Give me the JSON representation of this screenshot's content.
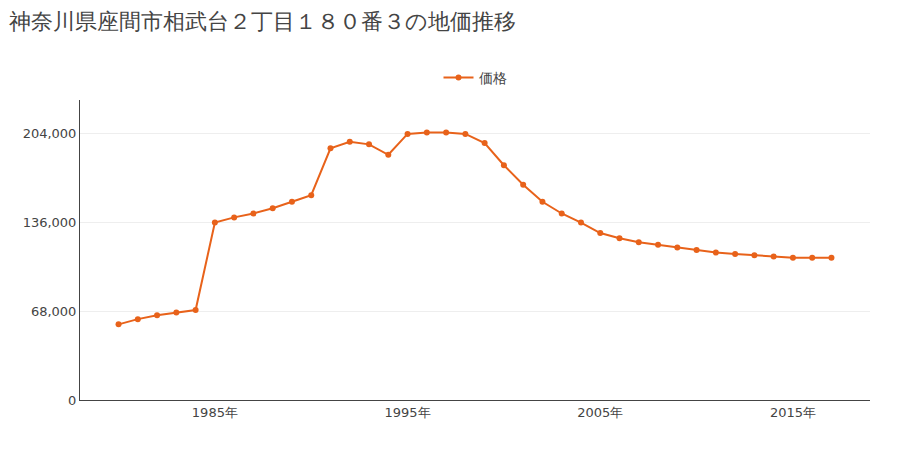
{
  "chart_data": {
    "type": "line",
    "title": "神奈川県座間市相武台２丁目１８０番３の地価推移",
    "x": [
      1980,
      1981,
      1982,
      1983,
      1984,
      1985,
      1986,
      1987,
      1988,
      1989,
      1990,
      1991,
      1992,
      1993,
      1994,
      1995,
      1996,
      1997,
      1998,
      1999,
      2000,
      2001,
      2002,
      2003,
      2004,
      2005,
      2006,
      2007,
      2008,
      2009,
      2010,
      2011,
      2012,
      2013,
      2014,
      2015,
      2016,
      2017
    ],
    "series": [
      {
        "name": "価格",
        "color": "#E8621A",
        "marker": "circle",
        "values": [
          58000,
          62000,
          65000,
          67000,
          69000,
          136000,
          140000,
          143000,
          147000,
          152000,
          157000,
          193000,
          198000,
          196000,
          188000,
          204000,
          205000,
          205000,
          204000,
          197000,
          180000,
          165000,
          152000,
          143000,
          136000,
          128000,
          124000,
          121000,
          119000,
          117000,
          115000,
          113000,
          112000,
          111000,
          110000,
          109000,
          109000,
          109000
        ]
      }
    ],
    "xlim": [
      1978,
      2019
    ],
    "xticks": [
      {
        "value": 1985,
        "label": "1985年"
      },
      {
        "value": 1995,
        "label": "1995年"
      },
      {
        "value": 2005,
        "label": "2005年"
      },
      {
        "value": 2015,
        "label": "2015年"
      }
    ],
    "ylim": [
      0,
      230000
    ],
    "yticks": [
      0,
      {
        "value": 68000,
        "label": "68,000"
      },
      {
        "value": 136000,
        "label": "136,000"
      },
      {
        "value": 204000,
        "label": "204,000"
      }
    ],
    "grid": "y",
    "legend": "top"
  }
}
